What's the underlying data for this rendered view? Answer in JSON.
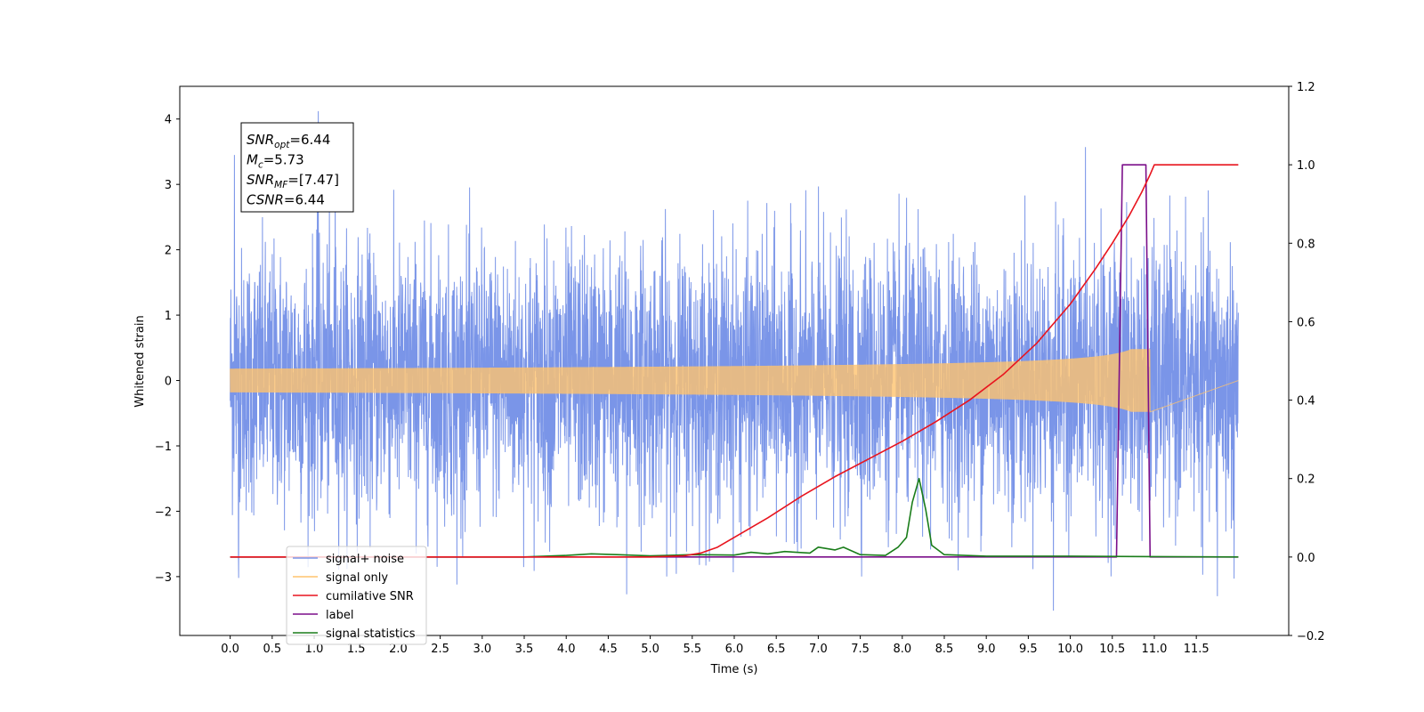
{
  "chart_data": {
    "type": "line",
    "title": "",
    "xlabel": "Time (s)",
    "ylabel": "Whitened strain",
    "xlim": [
      -0.6,
      12.6
    ],
    "ylim": [
      -3.9,
      4.5
    ],
    "y2lim": [
      -0.2,
      1.2
    ],
    "x_ticks": [
      0.0,
      0.5,
      1.0,
      1.5,
      2.0,
      2.5,
      3.0,
      3.5,
      4.0,
      4.5,
      5.0,
      5.5,
      6.0,
      6.5,
      7.0,
      7.5,
      8.0,
      8.5,
      9.0,
      9.5,
      10.0,
      10.5,
      11.0,
      11.5
    ],
    "x_tick_labels": [
      "0.0",
      "0.5",
      "1.0",
      "1.5",
      "2.0",
      "2.5",
      "3.0",
      "3.5",
      "4.0",
      "4.5",
      "5.0",
      "5.5",
      "6.0",
      "6.5",
      "7.0",
      "7.5",
      "8.0",
      "8.5",
      "9.0",
      "9.5",
      "10.0",
      "10.5",
      "11.0",
      "11.5"
    ],
    "y_ticks": [
      -3,
      -2,
      -1,
      0,
      1,
      2,
      3,
      4
    ],
    "y_tick_labels": [
      "−3",
      "−2",
      "−1",
      "0",
      "1",
      "2",
      "3",
      "4"
    ],
    "y2_ticks": [
      -0.2,
      0.0,
      0.2,
      0.4,
      0.6,
      0.8,
      1.0,
      1.2
    ],
    "y2_tick_labels": [
      "−0.2",
      "0.0",
      "0.2",
      "0.4",
      "0.6",
      "0.8",
      "1.0",
      "1.2"
    ],
    "grid": false,
    "legend_position": "lower-left",
    "annotation": {
      "lines": [
        {
          "sym": "SNR",
          "sub": "opt",
          "rest": "=6.44"
        },
        {
          "sym": "M",
          "sub": "c",
          "rest": "=5.73"
        },
        {
          "sym": "SNR",
          "sub": "MF",
          "rest": "=[7.47]"
        },
        {
          "sym": "CSNR",
          "sub": "",
          "rest": "=6.44"
        }
      ]
    },
    "series": [
      {
        "name": "signal+ noise",
        "axis": "left",
        "color": "#7a95e8",
        "kind": "noise",
        "t_start": 0.0,
        "t_end": 12.0,
        "sigma": 1.0,
        "peaks": [
          [
            1.05,
            4.12
          ],
          [
            0.05,
            3.45
          ],
          [
            1.25,
            3.55
          ],
          [
            10.18,
            3.57
          ],
          [
            9.8,
            -3.52
          ],
          [
            0.1,
            -3.02
          ],
          [
            4.72,
            -3.27
          ],
          [
            2.7,
            -3.12
          ],
          [
            11.75,
            -3.3
          ],
          [
            11.95,
            -3.03
          ]
        ]
      },
      {
        "name": "signal only",
        "axis": "left",
        "color": "#ffc36e",
        "kind": "chirp",
        "t_start": 0.0,
        "t_end": 12.0,
        "t_merge": 10.95,
        "amp_at_merge": 0.48
      },
      {
        "name": "cumilative SNR",
        "axis": "right",
        "color": "#e8141e",
        "x": [
          0.0,
          5.0,
          5.4,
          5.6,
          5.8,
          6.0,
          6.4,
          6.8,
          7.2,
          7.6,
          8.0,
          8.4,
          8.8,
          9.2,
          9.6,
          10.0,
          10.3,
          10.5,
          10.7,
          10.85,
          10.95,
          11.0,
          12.0
        ],
        "values": [
          0.0,
          0.0,
          0.003,
          0.01,
          0.025,
          0.05,
          0.1,
          0.155,
          0.205,
          0.25,
          0.295,
          0.345,
          0.4,
          0.465,
          0.545,
          0.645,
          0.735,
          0.8,
          0.87,
          0.93,
          0.975,
          1.0,
          1.0
        ]
      },
      {
        "name": "label",
        "axis": "right",
        "color": "#7b0f8a",
        "x": [
          0.0,
          10.55,
          10.62,
          10.9,
          10.95,
          11.0,
          12.0
        ],
        "values": [
          0.0,
          0.0,
          1.0,
          1.0,
          0.0,
          0.0,
          0.0
        ]
      },
      {
        "name": "signal statistics",
        "axis": "right",
        "color": "#1a7d1a",
        "x": [
          0.0,
          3.5,
          4.0,
          4.3,
          4.6,
          5.0,
          5.5,
          6.0,
          6.2,
          6.4,
          6.6,
          6.9,
          7.0,
          7.2,
          7.3,
          7.5,
          7.8,
          7.95,
          8.05,
          8.12,
          8.2,
          8.28,
          8.35,
          8.5,
          9.0,
          10.0,
          11.0,
          12.0
        ],
        "values": [
          0.0,
          0.0,
          0.004,
          0.008,
          0.006,
          0.003,
          0.006,
          0.005,
          0.012,
          0.008,
          0.014,
          0.01,
          0.025,
          0.018,
          0.025,
          0.006,
          0.004,
          0.025,
          0.05,
          0.14,
          0.2,
          0.12,
          0.03,
          0.006,
          0.002,
          0.002,
          0.001,
          0.0
        ]
      }
    ],
    "legend": [
      {
        "label": "signal+ noise",
        "color": "#7a95e8"
      },
      {
        "label": "signal only",
        "color": "#ffc36e"
      },
      {
        "label": "cumilative SNR",
        "color": "#e8141e"
      },
      {
        "label": "label",
        "color": "#7b0f8a"
      },
      {
        "label": "signal statistics",
        "color": "#1a7d1a"
      }
    ]
  }
}
